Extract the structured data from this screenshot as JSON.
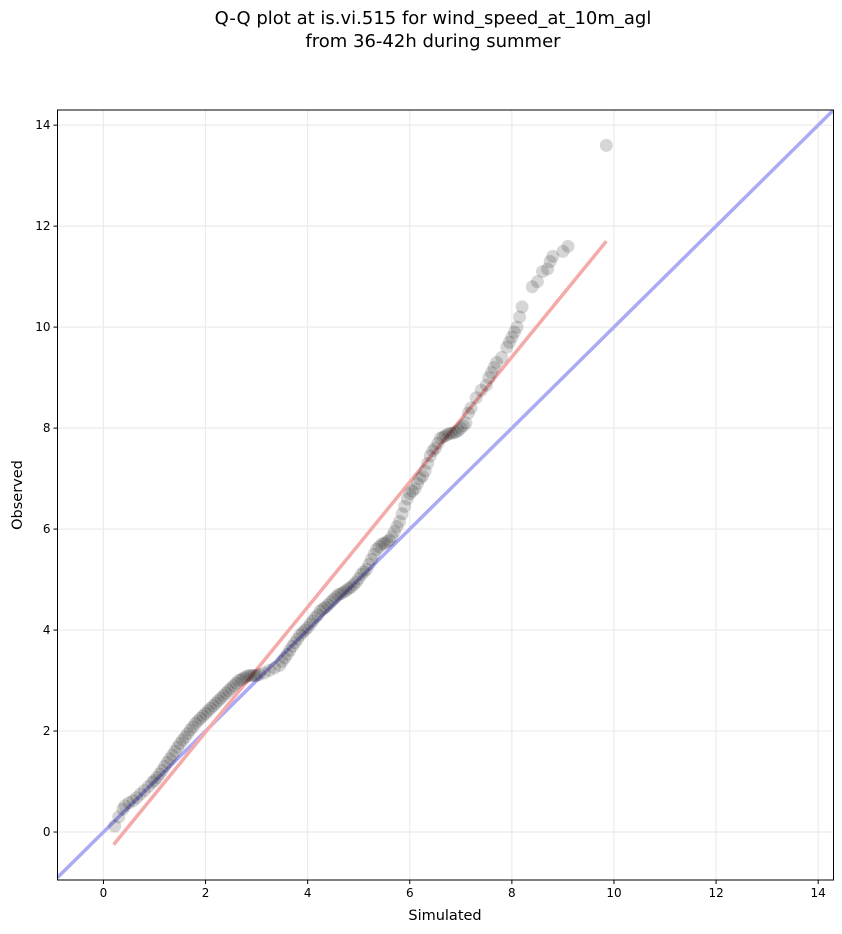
{
  "chart_data": {
    "type": "scatter",
    "title": "Q-Q plot at is.vi.515 for wind_speed_at_10m_agl",
    "subtitle": "from 36-42h during summer",
    "xlabel": "Simulated",
    "ylabel": "Observed",
    "xlim": [
      -0.9,
      14.3
    ],
    "ylim": [
      -0.95,
      14.3
    ],
    "xticks": [
      0,
      2,
      4,
      6,
      8,
      10,
      12,
      14
    ],
    "yticks": [
      0,
      2,
      4,
      6,
      8,
      10,
      12,
      14
    ],
    "grid": true,
    "colors": {
      "points": "#000000",
      "one_to_one_line": "#aaaaf5",
      "fit_line": "#f5aaaa",
      "grid": "#ebebeb"
    },
    "one_to_one_line": {
      "x": [
        -0.9,
        14.3
      ],
      "y": [
        -0.9,
        14.3
      ]
    },
    "fit_line": {
      "x": [
        0.2,
        9.85
      ],
      "y": [
        -0.25,
        11.7
      ]
    },
    "series": [
      {
        "x": [
          0.22,
          0.3,
          0.38,
          0.42,
          0.5,
          0.58,
          0.65,
          0.72,
          0.8,
          0.88,
          0.95,
          1.0,
          1.05,
          1.1,
          1.15,
          1.2,
          1.25,
          1.3,
          1.35,
          1.4,
          1.45,
          1.5,
          1.55,
          1.6,
          1.65,
          1.7,
          1.75,
          1.8,
          1.85,
          1.9,
          1.95,
          2.0,
          2.05,
          2.1,
          2.15,
          2.2,
          2.25,
          2.3,
          2.35,
          2.4,
          2.45,
          2.5,
          2.55,
          2.6,
          2.65,
          2.7,
          2.75,
          2.8,
          2.85,
          2.9,
          2.95,
          3.0,
          3.05,
          3.15,
          3.25,
          3.35,
          3.45,
          3.5,
          3.55,
          3.6,
          3.65,
          3.7,
          3.75,
          3.8,
          3.85,
          3.9,
          3.95,
          4.0,
          4.05,
          4.1,
          4.15,
          4.2,
          4.25,
          4.3,
          4.35,
          4.4,
          4.45,
          4.5,
          4.55,
          4.6,
          4.65,
          4.7,
          4.75,
          4.8,
          4.85,
          4.9,
          4.95,
          5.0,
          5.05,
          5.1,
          5.15,
          5.2,
          5.25,
          5.3,
          5.35,
          5.4,
          5.45,
          5.5,
          5.55,
          5.6,
          5.65,
          5.7,
          5.75,
          5.8,
          5.85,
          5.9,
          5.95,
          6.0,
          6.05,
          6.1,
          6.15,
          6.2,
          6.25,
          6.3,
          6.35,
          6.4,
          6.45,
          6.5,
          6.55,
          6.6,
          6.65,
          6.7,
          6.75,
          6.8,
          6.85,
          6.9,
          6.95,
          7.0,
          7.05,
          7.1,
          7.15,
          7.2,
          7.3,
          7.4,
          7.5,
          7.55,
          7.6,
          7.65,
          7.7,
          7.8,
          7.9,
          7.95,
          8.0,
          8.05,
          8.1,
          8.15,
          8.2,
          8.4,
          8.5,
          8.6,
          8.7,
          8.75,
          8.8,
          9.0,
          9.1,
          9.85
        ],
        "y": [
          0.12,
          0.3,
          0.45,
          0.52,
          0.58,
          0.62,
          0.68,
          0.75,
          0.82,
          0.9,
          0.98,
          1.02,
          1.08,
          1.15,
          1.22,
          1.3,
          1.38,
          1.45,
          1.52,
          1.6,
          1.68,
          1.75,
          1.82,
          1.88,
          1.95,
          2.02,
          2.08,
          2.15,
          2.2,
          2.25,
          2.3,
          2.35,
          2.4,
          2.45,
          2.5,
          2.55,
          2.6,
          2.65,
          2.7,
          2.75,
          2.8,
          2.85,
          2.9,
          2.95,
          3.0,
          3.02,
          3.05,
          3.08,
          3.1,
          3.1,
          3.1,
          3.1,
          3.12,
          3.15,
          3.2,
          3.25,
          3.3,
          3.38,
          3.45,
          3.52,
          3.6,
          3.68,
          3.75,
          3.82,
          3.9,
          3.95,
          4.0,
          4.05,
          4.12,
          4.18,
          4.25,
          4.3,
          4.38,
          4.42,
          4.45,
          4.5,
          4.55,
          4.6,
          4.65,
          4.7,
          4.72,
          4.75,
          4.78,
          4.82,
          4.85,
          4.9,
          4.95,
          5.02,
          5.1,
          5.15,
          5.2,
          5.3,
          5.4,
          5.5,
          5.6,
          5.65,
          5.7,
          5.72,
          5.75,
          5.78,
          5.85,
          5.95,
          6.05,
          6.15,
          6.3,
          6.45,
          6.6,
          6.7,
          6.75,
          6.8,
          6.9,
          7.0,
          7.05,
          7.15,
          7.3,
          7.45,
          7.55,
          7.6,
          7.7,
          7.8,
          7.82,
          7.85,
          7.88,
          7.9,
          7.9,
          7.92,
          7.95,
          8.0,
          8.05,
          8.1,
          8.3,
          8.4,
          8.6,
          8.75,
          8.85,
          9.0,
          9.1,
          9.2,
          9.3,
          9.4,
          9.6,
          9.7,
          9.8,
          9.9,
          10.0,
          10.2,
          10.4,
          10.8,
          10.9,
          11.1,
          11.15,
          11.3,
          11.4,
          11.5,
          11.6,
          13.6
        ]
      }
    ]
  }
}
